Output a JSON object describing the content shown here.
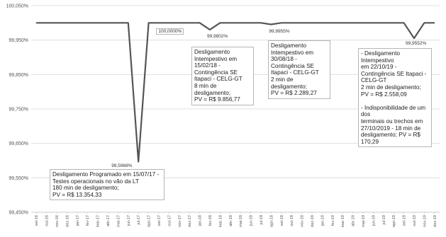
{
  "chart_data": {
    "type": "line",
    "title": "",
    "xlabel": "",
    "ylabel": "",
    "ylim": [
      99.45,
      100.05
    ],
    "yticks": [
      "100,050%",
      "99,950%",
      "99,850%",
      "99,750%",
      "99,650%",
      "99,550%",
      "99,450%"
    ],
    "ytick_values": [
      100.05,
      99.95,
      99.85,
      99.75,
      99.65,
      99.55,
      99.45
    ],
    "grid": true,
    "legend": "none",
    "line_color": "#555555",
    "categories": [
      "set-16",
      "out-16",
      "nov-16",
      "dez-16",
      "jan-17",
      "fev-17",
      "mar-17",
      "abr-17",
      "mai-17",
      "jun-17",
      "jul-17",
      "ago-17",
      "set-17",
      "out-17",
      "nov-17",
      "dez-17",
      "jan-18",
      "fev-18",
      "mar-18",
      "abr-18",
      "mai-18",
      "jun-18",
      "jul-18",
      "ago-18",
      "set-18",
      "out-18",
      "nov-18",
      "dez-18",
      "jan-19",
      "fev-19",
      "mar-19",
      "abr-19",
      "mai-19",
      "jun-19",
      "jul-19",
      "ago-19",
      "set-19",
      "out-19",
      "nov-19",
      "dez-19"
    ],
    "values": [
      100,
      100,
      100,
      100,
      100,
      100,
      100,
      100,
      100,
      100,
      99.5968,
      100,
      100,
      100,
      100,
      100,
      100,
      99.9802,
      100,
      100,
      100,
      100,
      100,
      99.9955,
      100,
      100,
      100,
      100,
      100,
      100,
      100,
      100,
      100,
      100,
      100,
      100,
      100,
      99.9552,
      100,
      100
    ],
    "point_labels": [
      {
        "index": 10,
        "text": "99,5968%",
        "boxed": false
      },
      {
        "index": 13,
        "text": "100,0000%",
        "boxed": true
      },
      {
        "index": 17,
        "text": "99,9802%",
        "boxed": false
      },
      {
        "index": 23,
        "text": "99,9955%",
        "boxed": false
      },
      {
        "index": 37,
        "text": "99,9552%",
        "boxed": false
      }
    ],
    "annotations": [
      {
        "index": 10,
        "text": "Desligamento Programado em 15/07/17 -\nTestes operacionais no vão da LT\n180 min de desligamento;\nPV = R$ 13.354,33"
      },
      {
        "index": 17,
        "text": "Desligamento\nIntempestivo em\n15/02/18 -\nContingência SE\nItapaci - CELG-GT\n8 min de\ndesligamento;\nPV = R$ 9.856,77"
      },
      {
        "index": 23,
        "text": "Desligamento\nIntempestivo em\n30/08/18 -\nContingência SE\nItapaci - CELG-GT\n2 min de\ndesligamento;\nPV = R$ 2.289,27"
      },
      {
        "index": 37,
        "text": "- Desligamento Intempestivo\nem 22/10/19 -\nContingência SE Itapaci -\nCELG-GT\n2 min de desligamento;\nPV = R$ 2.558,09\n\n- Indisponibilidade de um dos\nterminais ou trechos em\n27/10/2019 - 18 min de\ndesligamento; PV = R$ 170,29"
      }
    ]
  }
}
